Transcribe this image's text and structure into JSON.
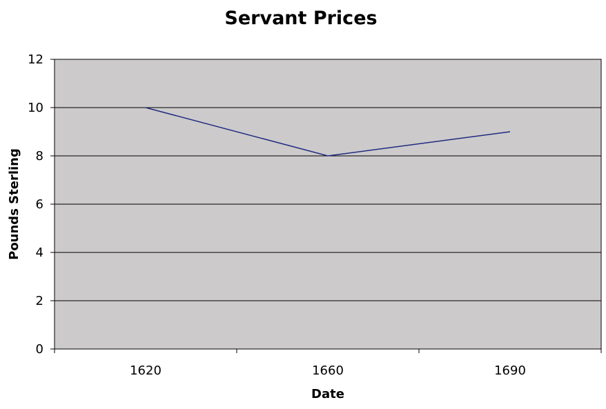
{
  "chart_data": {
    "type": "line",
    "title": "Servant Prices",
    "xlabel": "Date",
    "ylabel": "Pounds Sterling",
    "categories": [
      "1620",
      "1660",
      "1690"
    ],
    "series": [
      {
        "values": [
          10,
          8,
          9
        ]
      }
    ],
    "ylim": [
      0,
      12
    ],
    "yticks": [
      0,
      2,
      4,
      6,
      8,
      10,
      12
    ],
    "grid": true,
    "legend": "none",
    "colors": {
      "plot_background": "#cccacb",
      "gridline": "#000000",
      "line": "#1f2a80",
      "axis": "#000000"
    }
  }
}
